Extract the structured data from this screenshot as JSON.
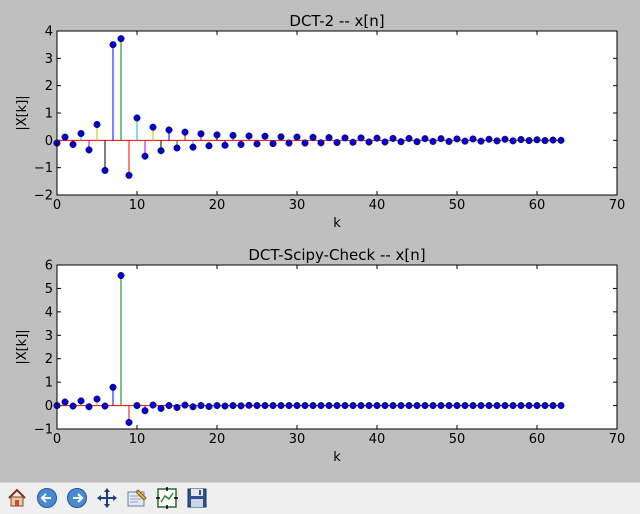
{
  "chart_data": [
    {
      "type": "stem",
      "title": "DCT-2  --  x[n]",
      "xlabel": "k",
      "ylabel": "|X[k]|",
      "xlim": [
        0,
        70
      ],
      "ylim": [
        -2,
        4
      ],
      "xticks": [
        "0",
        "10",
        "20",
        "30",
        "40",
        "50",
        "60",
        "70"
      ],
      "yticks": [
        "−2",
        "−1",
        "0",
        "1",
        "2",
        "3",
        "4"
      ],
      "grid": false,
      "values": [
        -0.1,
        0.12,
        -0.15,
        0.25,
        -0.35,
        0.58,
        -1.1,
        3.5,
        3.72,
        -1.28,
        0.82,
        -0.58,
        0.48,
        -0.38,
        0.38,
        -0.28,
        0.3,
        -0.25,
        0.24,
        -0.2,
        0.2,
        -0.18,
        0.18,
        -0.15,
        0.16,
        -0.13,
        0.15,
        -0.12,
        0.13,
        -0.1,
        0.12,
        -0.1,
        0.11,
        -0.09,
        0.1,
        -0.08,
        0.09,
        -0.07,
        0.09,
        -0.06,
        0.08,
        -0.06,
        0.07,
        -0.05,
        0.07,
        -0.05,
        0.06,
        -0.04,
        0.06,
        -0.04,
        0.05,
        -0.03,
        0.05,
        -0.03,
        0.04,
        -0.02,
        0.04,
        -0.02,
        0.03,
        -0.01,
        0.02,
        -0.01,
        0.01,
        0.0
      ]
    },
    {
      "type": "stem",
      "title": "DCT-Scipy-Check  --  x[n]",
      "xlabel": "k",
      "ylabel": "|X[k]|",
      "xlim": [
        0,
        70
      ],
      "ylim": [
        -1,
        6
      ],
      "xticks": [
        "0",
        "10",
        "20",
        "30",
        "40",
        "50",
        "60",
        "70"
      ],
      "yticks": [
        "−1",
        "0",
        "1",
        "2",
        "3",
        "4",
        "5",
        "6"
      ],
      "grid": false,
      "values": [
        0.0,
        0.15,
        -0.02,
        0.2,
        -0.05,
        0.28,
        -0.02,
        0.78,
        5.55,
        -0.72,
        0.0,
        -0.22,
        0.02,
        -0.12,
        0.0,
        -0.08,
        0.02,
        -0.05,
        0.0,
        -0.04,
        0.0,
        -0.02,
        0.0,
        -0.01,
        0.01,
        0.0,
        0.0,
        0.0,
        0.0,
        0.0,
        0.0,
        0.0,
        0.0,
        0.0,
        0.0,
        0.0,
        0.0,
        0.0,
        0.0,
        0.0,
        0.0,
        0.0,
        0.0,
        0.0,
        0.0,
        0.0,
        0.0,
        0.0,
        0.0,
        0.0,
        0.0,
        0.0,
        0.0,
        0.0,
        0.0,
        0.0,
        0.0,
        0.0,
        0.0,
        0.0,
        0.0,
        0.0,
        0.0,
        0.0
      ]
    }
  ],
  "colors": {
    "figure_background": "#bfbfbf",
    "axes_background": "#ffffff",
    "marker": "#0000cc",
    "baseline": "#ff0000",
    "stem_cycle": [
      "#0000ff",
      "#008000",
      "#ff0000",
      "#00bfbf",
      "#bf00bf",
      "#bfbf00",
      "#000000"
    ]
  },
  "toolbar": {
    "buttons": [
      {
        "name": "home-button",
        "icon": "home-icon"
      },
      {
        "name": "back-button",
        "icon": "back-arrow-icon"
      },
      {
        "name": "forward-button",
        "icon": "forward-arrow-icon"
      },
      {
        "name": "pan-button",
        "icon": "pan-arrows-icon"
      },
      {
        "name": "zoom-button",
        "icon": "zoom-rect-icon"
      },
      {
        "name": "configure-subplots-button",
        "icon": "subplots-icon"
      },
      {
        "name": "save-button",
        "icon": "save-disk-icon"
      }
    ]
  }
}
